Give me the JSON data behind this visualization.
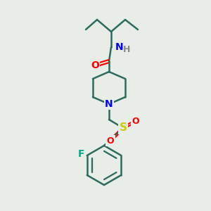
{
  "background_color": "#e8ede8",
  "bond_color": "#2d6b5e",
  "bond_width": 1.8,
  "atom_colors": {
    "O": "#ff0000",
    "N": "#0000ff",
    "S": "#cccc00",
    "F": "#00aa88",
    "H": "#888888",
    "C": "#2d6b5e"
  },
  "font_size": 10,
  "fig_size": [
    3.0,
    3.0
  ],
  "dpi": 100
}
